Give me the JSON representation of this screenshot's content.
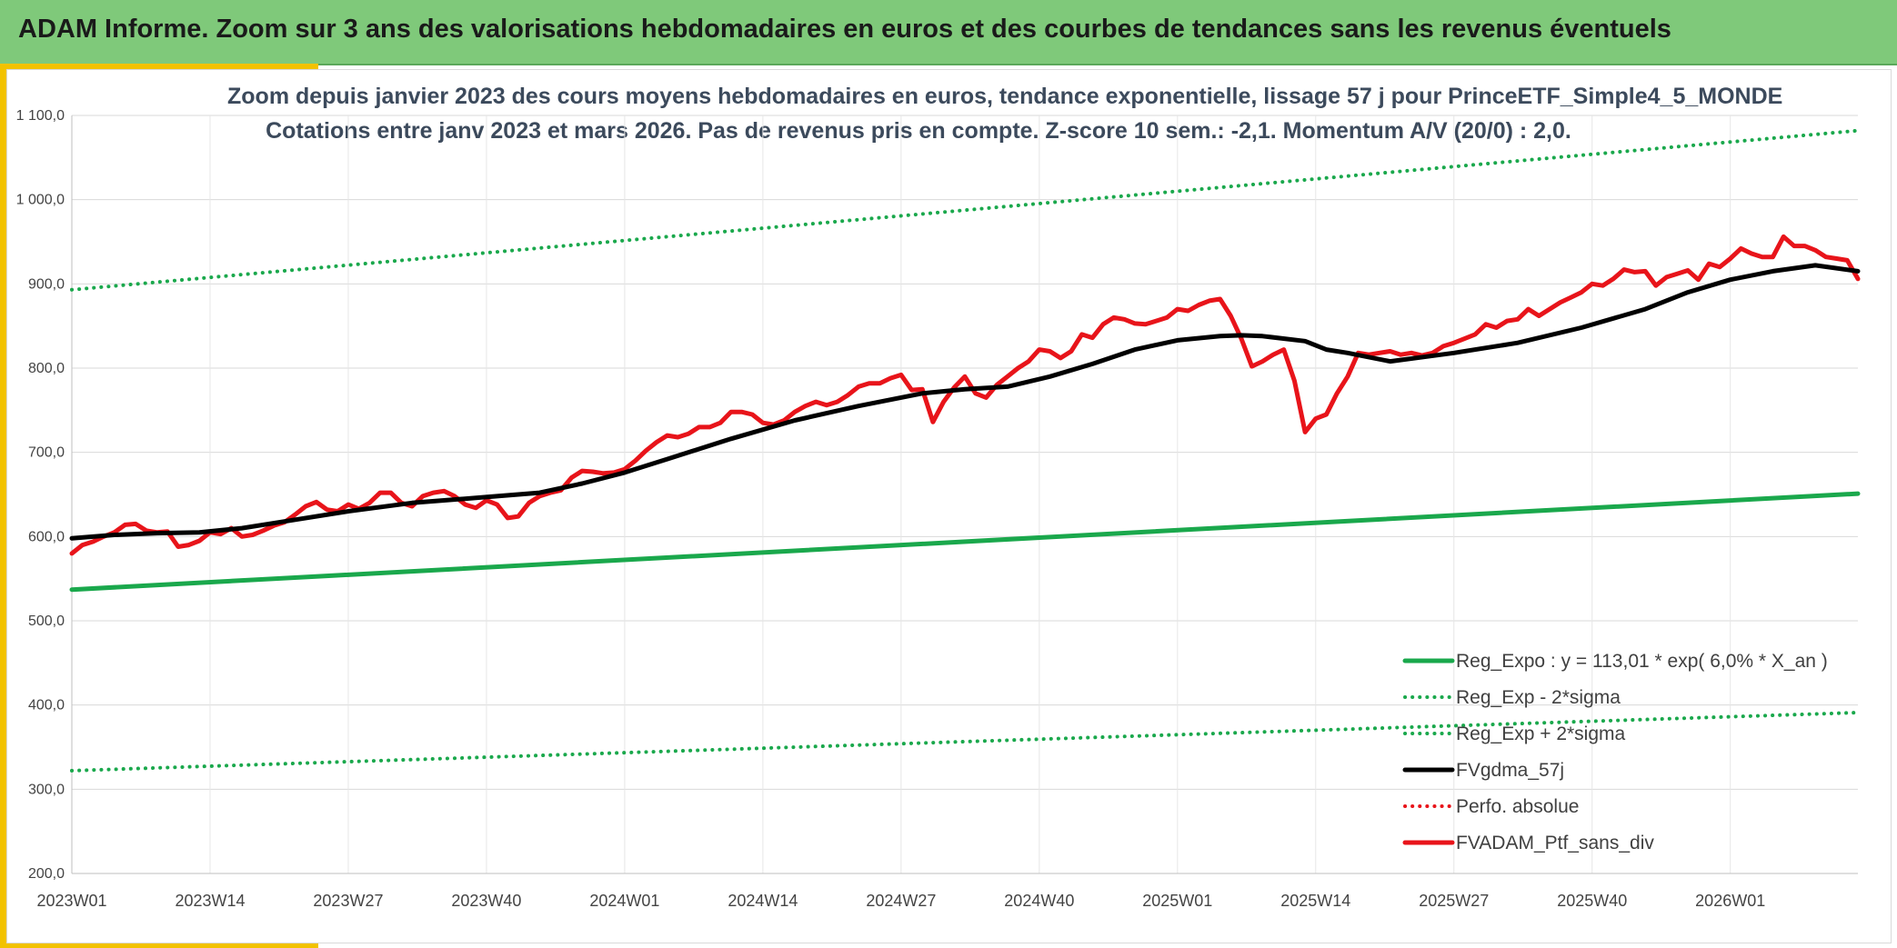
{
  "banner": {
    "title": "ADAM Informe. Zoom sur 3 ans des valorisations hebdomadaires en euros et des courbes de tendances sans les revenus éventuels"
  },
  "colors": {
    "banner": "#7fc97a",
    "accent": "#f2c200",
    "regression": "#1aa84c",
    "smoothed": "#000000",
    "portfolio": "#e8141a",
    "title_text": "#3c4a5c"
  },
  "chart_data": {
    "type": "line",
    "title": "Zoom depuis janvier 2023 des cours moyens hebdomadaires en euros, tendance exponentielle, lissage 57 j pour PrinceETF_Simple4_5_MONDE",
    "subtitle": "Cotations entre janv 2023 et mars 2026. Pas de revenus pris en compte. Z-score 10 sem.: -2,1. Momentum A/V (20/0) : 2,0.",
    "xlabel": "",
    "ylabel": "",
    "ylim": [
      200,
      1100
    ],
    "y_ticks": [
      "200,0",
      "300,0",
      "400,0",
      "500,0",
      "600,0",
      "700,0",
      "800,0",
      "900,0",
      "1 000,0",
      "1 100,0"
    ],
    "x_ticks": [
      "2023W01",
      "2023W14",
      "2023W27",
      "2023W40",
      "2024W01",
      "2024W14",
      "2024W27",
      "2024W40",
      "2025W01",
      "2025W14",
      "2025W27",
      "2025W40",
      "2026W01"
    ],
    "grid": true,
    "legend_position": "bottom-right",
    "series": [
      {
        "name": "Reg_Expo : y = 113,01 * exp( 6,0% *  X_an )",
        "style": "solid-green",
        "x": [
          0,
          168
        ],
        "values": [
          537,
          651
        ]
      },
      {
        "name": "Reg_Exp - 2*sigma",
        "style": "dotted-green",
        "x": [
          0,
          168
        ],
        "values": [
          322,
          391
        ]
      },
      {
        "name": "Reg_Exp + 2*sigma",
        "style": "dotted-green",
        "x": [
          0,
          168
        ],
        "values": [
          893,
          1082
        ]
      },
      {
        "name": "FVgdma_57j",
        "style": "solid-black",
        "x": [
          0,
          4,
          8,
          12,
          16,
          20,
          26,
          32,
          40,
          44,
          48,
          52,
          56,
          62,
          68,
          74,
          80,
          84,
          88,
          92,
          96,
          100,
          104,
          108,
          110,
          112,
          116,
          118,
          120,
          124,
          130,
          136,
          142,
          148,
          152,
          156,
          160,
          164,
          168
        ],
        "values": [
          598,
          602,
          604,
          605,
          610,
          618,
          630,
          640,
          648,
          652,
          663,
          676,
          692,
          716,
          738,
          755,
          770,
          775,
          778,
          790,
          805,
          822,
          833,
          838,
          839,
          838,
          832,
          822,
          818,
          808,
          818,
          830,
          848,
          870,
          890,
          905,
          915,
          922,
          915
        ]
      },
      {
        "name": "Perfo. absolue",
        "style": "dotted-red",
        "x": [],
        "values": []
      },
      {
        "name": "FVADAM_Ptf_sans_div",
        "style": "solid-red",
        "x": [
          0,
          1,
          2,
          3,
          4,
          5,
          6,
          7,
          8,
          9,
          10,
          11,
          12,
          13,
          14,
          15,
          16,
          17,
          18,
          19,
          20,
          21,
          22,
          23,
          24,
          25,
          26,
          27,
          28,
          29,
          30,
          31,
          32,
          33,
          34,
          35,
          36,
          37,
          38,
          39,
          40,
          41,
          42,
          43,
          44,
          45,
          46,
          47,
          48,
          49,
          50,
          51,
          52,
          53,
          54,
          55,
          56,
          57,
          58,
          59,
          60,
          61,
          62,
          63,
          64,
          65,
          66,
          67,
          68,
          69,
          70,
          71,
          72,
          73,
          74,
          75,
          76,
          77,
          78,
          79,
          80,
          81,
          82,
          83,
          84,
          85,
          86,
          87,
          88,
          89,
          90,
          91,
          92,
          93,
          94,
          95,
          96,
          97,
          98,
          99,
          100,
          101,
          102,
          103,
          104,
          105,
          106,
          107,
          108,
          109,
          110,
          111,
          112,
          113,
          114,
          115,
          116,
          117,
          118,
          119,
          120,
          121,
          122,
          123,
          124,
          125,
          126,
          127,
          128,
          129,
          130,
          131,
          132,
          133,
          134,
          135,
          136,
          137,
          138,
          139,
          140,
          141,
          142,
          143,
          144,
          145,
          146,
          147,
          148,
          149,
          150,
          151,
          152,
          153,
          154,
          155,
          156,
          157,
          158,
          159,
          160,
          161,
          162,
          163,
          164,
          165,
          166,
          167,
          168
        ],
        "values": [
          580,
          590,
          594,
          600,
          605,
          614,
          615,
          607,
          605,
          606,
          588,
          590,
          595,
          605,
          603,
          610,
          600,
          602,
          607,
          613,
          617,
          626,
          636,
          641,
          632,
          630,
          638,
          633,
          640,
          652,
          652,
          640,
          636,
          648,
          652,
          654,
          648,
          638,
          634,
          643,
          638,
          622,
          624,
          640,
          648,
          652,
          655,
          670,
          678,
          677,
          675,
          676,
          680,
          690,
          702,
          712,
          720,
          718,
          722,
          730,
          730,
          735,
          748,
          748,
          745,
          735,
          733,
          738,
          748,
          755,
          760,
          756,
          760,
          768,
          778,
          782,
          782,
          788,
          792,
          774,
          775,
          736,
          760,
          777,
          790,
          770,
          765,
          780,
          790,
          800,
          808,
          822,
          820,
          812,
          820,
          840,
          836,
          852,
          860,
          858,
          853,
          852,
          856,
          860,
          870,
          868,
          875,
          880,
          882,
          862,
          835,
          802,
          808,
          816,
          822,
          785,
          724,
          740,
          745,
          770,
          790,
          818,
          816,
          818,
          820,
          816,
          818,
          815,
          818,
          826,
          830,
          835,
          840,
          852,
          848,
          856,
          858,
          870,
          862,
          870,
          878,
          884,
          890,
          900,
          898,
          906,
          917,
          914,
          915,
          898,
          908,
          912,
          916,
          905,
          924,
          920,
          930,
          942,
          936,
          932,
          932,
          956,
          945,
          945,
          940,
          932,
          930,
          928,
          906
        ]
      }
    ]
  }
}
